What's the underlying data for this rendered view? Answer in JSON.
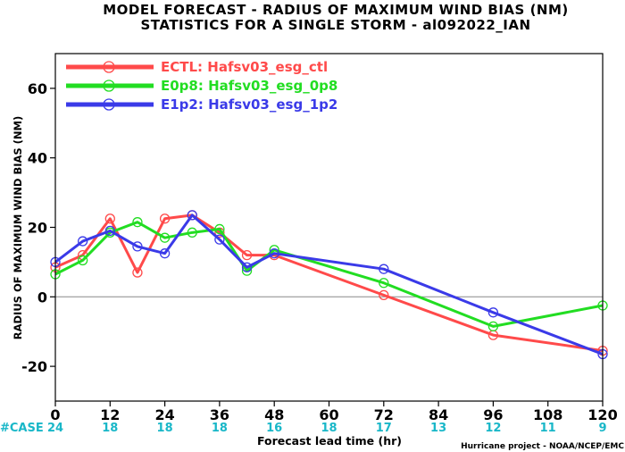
{
  "chart_data": {
    "type": "line",
    "title": "MODEL FORECAST - RADIUS OF MAXIMUM WIND BIAS (NM)",
    "subtitle": "STATISTICS FOR A SINGLE STORM - al092022_IAN",
    "xlabel": "Forecast lead time (hr)",
    "ylabel": "RADIUS OF MAXIMUM WIND BIAS (NM)",
    "xlim": [
      0,
      120
    ],
    "ylim": [
      -30,
      70
    ],
    "x_ticks": [
      0,
      12,
      24,
      36,
      48,
      60,
      72,
      84,
      96,
      108,
      120
    ],
    "y_ticks": [
      -20,
      0,
      20,
      40,
      60
    ],
    "zero_line": true,
    "legend_position": "top-left",
    "case_label": "#CASE",
    "case_hours": [
      0,
      12,
      24,
      36,
      48,
      60,
      72,
      84,
      96,
      108,
      120
    ],
    "case_counts": [
      "24",
      "18",
      "18",
      "18",
      "16",
      "18",
      "17",
      "13",
      "12",
      "11",
      "9"
    ],
    "credit": "Hurricane project - NOAA/NCEP/EMC",
    "series": [
      {
        "name": "ECTL: Hafsv03_esg_ctl",
        "color": "#ff4a4a",
        "points": [
          [
            0,
            8.5
          ],
          [
            6,
            12
          ],
          [
            12,
            22.5
          ],
          [
            18,
            7
          ],
          [
            24,
            22.5
          ],
          [
            30,
            23.5
          ],
          [
            36,
            18.5
          ],
          [
            42,
            12
          ],
          [
            48,
            12
          ],
          [
            72,
            0.5
          ],
          [
            96,
            -11
          ],
          [
            120,
            -15.5
          ]
        ]
      },
      {
        "name": "E0p8: Hafsv03_esg_0p8",
        "color": "#22dd22",
        "points": [
          [
            0,
            6.5
          ],
          [
            6,
            10.5
          ],
          [
            12,
            18.5
          ],
          [
            18,
            21.5
          ],
          [
            24,
            17
          ],
          [
            30,
            18.5
          ],
          [
            36,
            19.5
          ],
          [
            42,
            7.5
          ],
          [
            48,
            13.5
          ],
          [
            72,
            4
          ],
          [
            96,
            -8.5
          ],
          [
            120,
            -2.5
          ]
        ]
      },
      {
        "name": "E1p2: Hafsv03_esg_1p2",
        "color": "#3a3ae8",
        "points": [
          [
            0,
            10
          ],
          [
            6,
            16
          ],
          [
            12,
            19
          ],
          [
            18,
            14.5
          ],
          [
            24,
            12.5
          ],
          [
            30,
            23.5
          ],
          [
            36,
            16.5
          ],
          [
            42,
            8.5
          ],
          [
            48,
            12.5
          ],
          [
            72,
            8
          ],
          [
            96,
            -4.5
          ],
          [
            120,
            -16.5
          ]
        ]
      }
    ]
  }
}
